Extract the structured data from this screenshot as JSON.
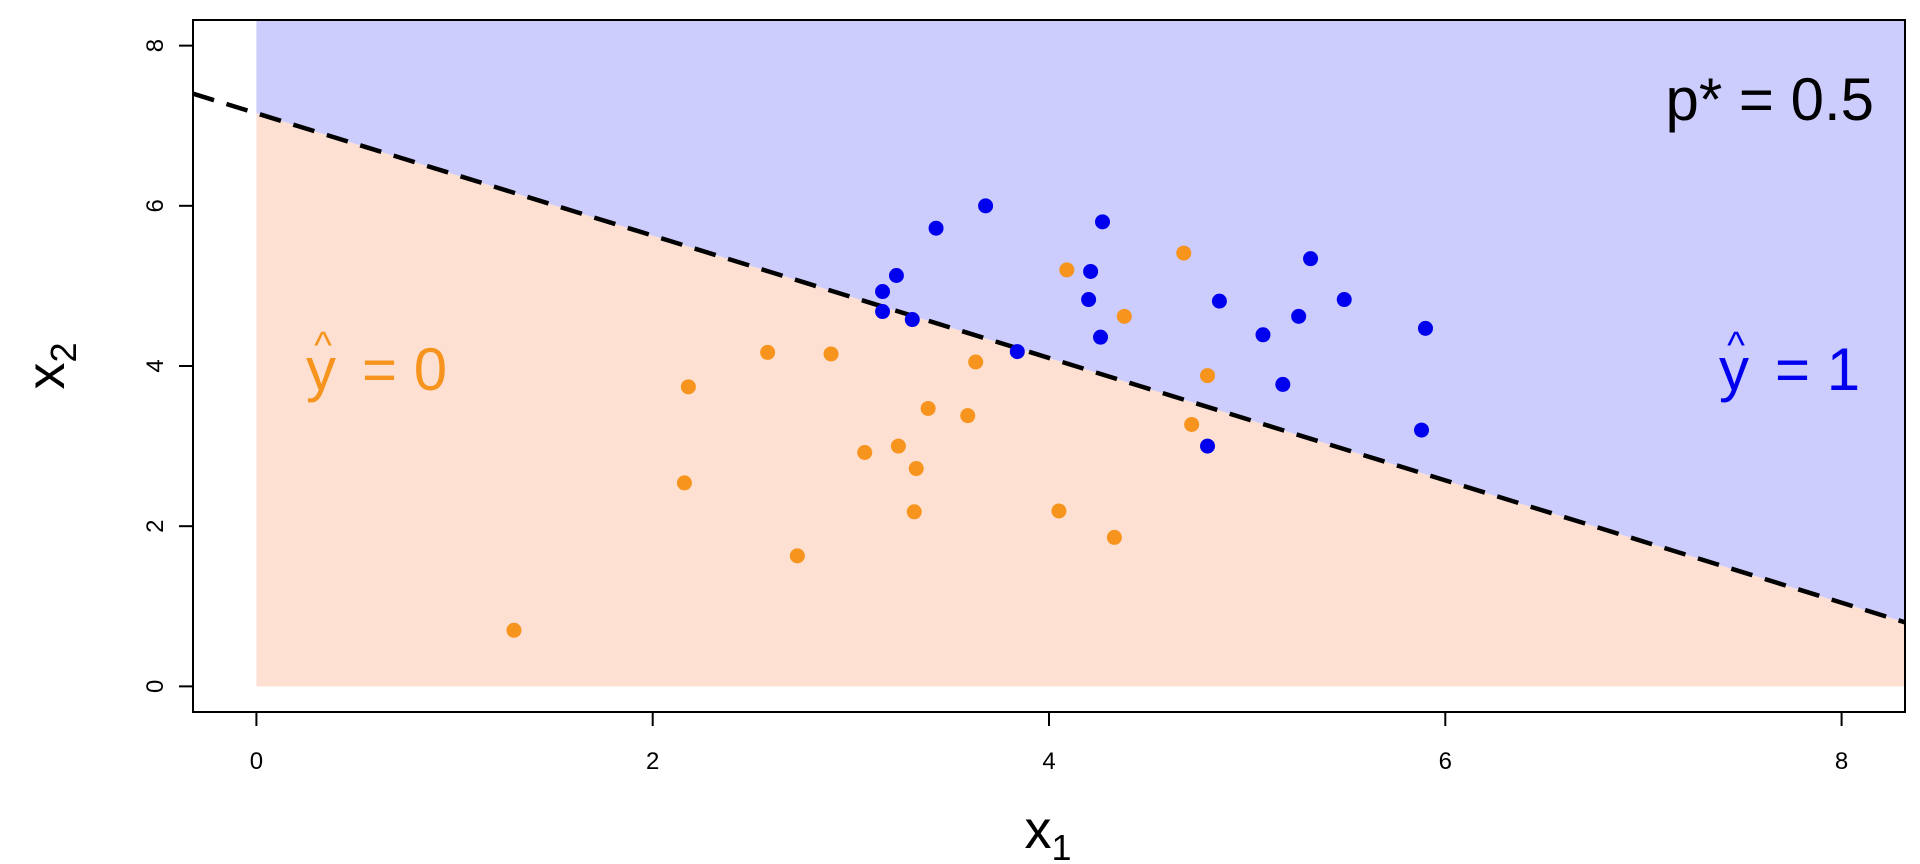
{
  "chart_data": {
    "type": "scatter",
    "xlabel": "x",
    "xlabel_sub": "1",
    "ylabel": "x",
    "ylabel_sub": "2",
    "xlim": [
      -0.32,
      8.32
    ],
    "ylim": [
      -0.32,
      8.32
    ],
    "x_ticks": [
      0,
      2,
      4,
      6,
      8
    ],
    "y_ticks": [
      0,
      2,
      4,
      6,
      8
    ],
    "grid": false,
    "decision_boundary": {
      "style": "dashed",
      "color": "#000000",
      "p1": [
        -0.32,
        7.4
      ],
      "p2": [
        8.32,
        0.8
      ]
    },
    "regions": [
      {
        "label_symbol": "y",
        "label_hat": "^",
        "label_value": "= 0",
        "color": "#fde0d2",
        "text_color": "#f7941d",
        "side": "below"
      },
      {
        "label_symbol": "y",
        "label_hat": "^",
        "label_value": "= 1",
        "color": "#ccccfd",
        "text_color": "#0000ee",
        "side": "above"
      }
    ],
    "threshold_label": "p* = 0.5",
    "series": [
      {
        "class": 0,
        "color": "#f7941d",
        "points": [
          [
            1.3,
            0.7
          ],
          [
            2.18,
            3.74
          ],
          [
            2.16,
            2.54
          ],
          [
            2.58,
            4.17
          ],
          [
            2.9,
            4.15
          ],
          [
            2.73,
            1.63
          ],
          [
            3.07,
            2.92
          ],
          [
            3.24,
            3.0
          ],
          [
            3.33,
            2.72
          ],
          [
            3.39,
            3.47
          ],
          [
            3.32,
            2.18
          ],
          [
            3.59,
            3.38
          ],
          [
            3.63,
            4.05
          ],
          [
            4.05,
            2.19
          ],
          [
            4.09,
            5.2
          ],
          [
            4.33,
            1.86
          ],
          [
            4.38,
            4.62
          ],
          [
            4.68,
            5.41
          ],
          [
            4.72,
            3.27
          ],
          [
            4.8,
            3.88
          ]
        ]
      },
      {
        "class": 1,
        "color": "#0000ee",
        "points": [
          [
            3.16,
            4.93
          ],
          [
            3.23,
            5.13
          ],
          [
            3.16,
            4.68
          ],
          [
            3.31,
            4.58
          ],
          [
            3.43,
            5.72
          ],
          [
            3.68,
            6.0
          ],
          [
            3.84,
            4.18
          ],
          [
            4.21,
            5.18
          ],
          [
            4.2,
            4.83
          ],
          [
            4.26,
            4.36
          ],
          [
            4.27,
            5.8
          ],
          [
            4.8,
            3.0
          ],
          [
            4.86,
            4.81
          ],
          [
            5.08,
            4.39
          ],
          [
            5.18,
            3.77
          ],
          [
            5.26,
            4.62
          ],
          [
            5.32,
            5.34
          ],
          [
            5.49,
            4.83
          ],
          [
            5.88,
            3.2
          ],
          [
            5.9,
            4.47
          ]
        ]
      }
    ]
  }
}
